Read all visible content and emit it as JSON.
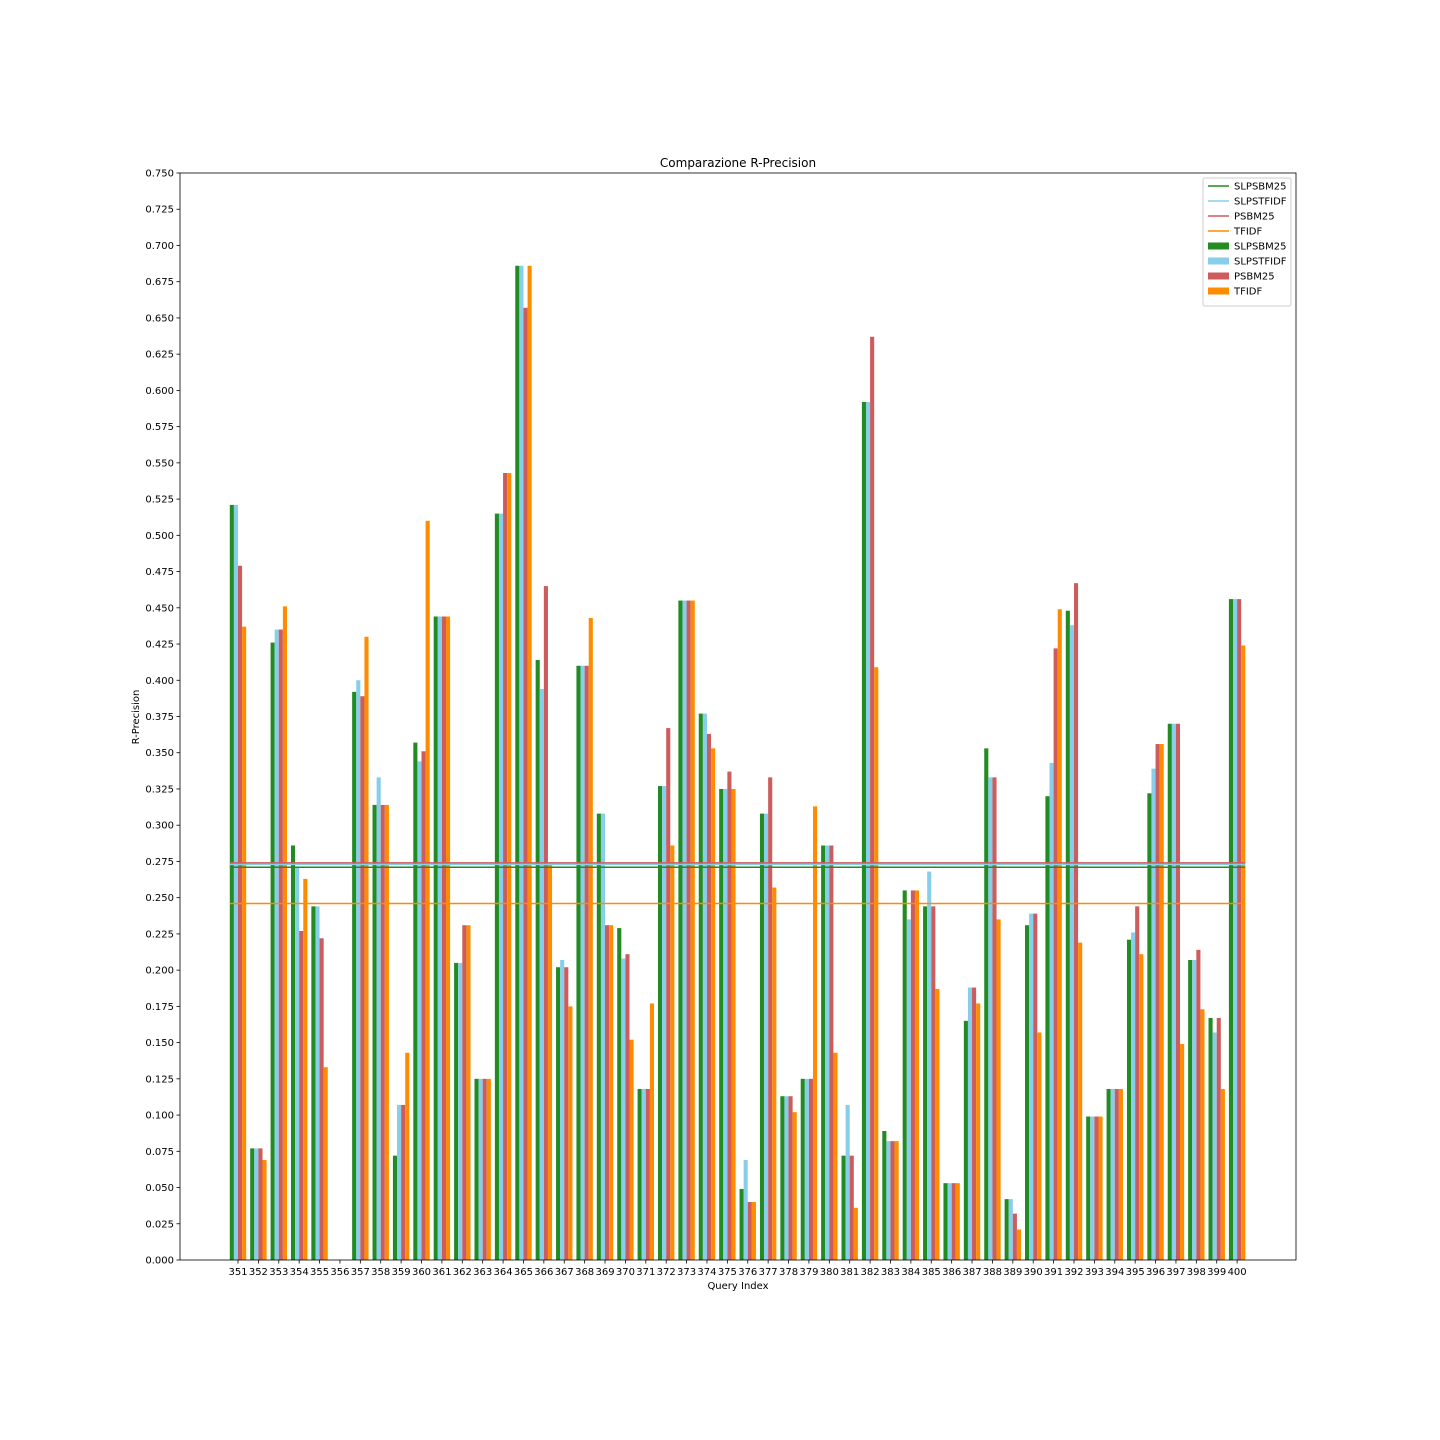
{
  "chart_data": {
    "type": "bar",
    "title": "Comparazione R-Precision",
    "xlabel": "Query Index",
    "ylabel": "R-Precision",
    "ylim": [
      0,
      0.75
    ],
    "yticks": [
      "0.000",
      "0.025",
      "0.050",
      "0.075",
      "0.100",
      "0.125",
      "0.150",
      "0.175",
      "0.200",
      "0.225",
      "0.250",
      "0.275",
      "0.300",
      "0.325",
      "0.350",
      "0.375",
      "0.400",
      "0.425",
      "0.450",
      "0.475",
      "0.500",
      "0.525",
      "0.550",
      "0.575",
      "0.600",
      "0.625",
      "0.650",
      "0.675",
      "0.700",
      "0.725",
      "0.750"
    ],
    "grid": false,
    "legend_position": "top-right",
    "categories": [
      "351",
      "352",
      "353",
      "354",
      "355",
      "356",
      "357",
      "358",
      "359",
      "360",
      "361",
      "362",
      "363",
      "364",
      "365",
      "366",
      "367",
      "368",
      "369",
      "370",
      "371",
      "372",
      "373",
      "374",
      "375",
      "376",
      "377",
      "378",
      "379",
      "380",
      "381",
      "382",
      "383",
      "384",
      "385",
      "386",
      "387",
      "388",
      "389",
      "390",
      "391",
      "392",
      "393",
      "394",
      "395",
      "396",
      "397",
      "398",
      "399",
      "400"
    ],
    "series": [
      {
        "name": "SLPSBM25",
        "color": "#228b22",
        "values": [
          0.521,
          0.077,
          0.426,
          0.286,
          0.244,
          0.0,
          0.392,
          0.314,
          0.072,
          0.357,
          0.444,
          0.205,
          0.125,
          0.515,
          0.686,
          0.414,
          0.202,
          0.41,
          0.308,
          0.229,
          0.118,
          0.327,
          0.455,
          0.377,
          0.325,
          0.049,
          0.308,
          0.113,
          0.125,
          0.286,
          0.072,
          0.592,
          0.089,
          0.255,
          0.244,
          0.053,
          0.165,
          0.353,
          0.042,
          0.231,
          0.32,
          0.448,
          0.099,
          0.118,
          0.221,
          0.322,
          0.37,
          0.207,
          0.167,
          0.456
        ]
      },
      {
        "name": "SLPSTFIDF",
        "color": "#87ceeb",
        "values": [
          0.521,
          0.077,
          0.435,
          0.271,
          0.244,
          0.0,
          0.4,
          0.333,
          0.107,
          0.344,
          0.444,
          0.205,
          0.125,
          0.515,
          0.686,
          0.394,
          0.207,
          0.41,
          0.308,
          0.208,
          0.118,
          0.327,
          0.455,
          0.377,
          0.325,
          0.069,
          0.308,
          0.113,
          0.125,
          0.286,
          0.107,
          0.592,
          0.082,
          0.235,
          0.268,
          0.053,
          0.188,
          0.333,
          0.042,
          0.239,
          0.343,
          0.438,
          0.099,
          0.118,
          0.226,
          0.339,
          0.37,
          0.207,
          0.157,
          0.456
        ]
      },
      {
        "name": "PSBM25",
        "color": "#cd5c5c",
        "values": [
          0.479,
          0.077,
          0.435,
          0.227,
          0.222,
          0.0,
          0.389,
          0.314,
          0.107,
          0.351,
          0.444,
          0.231,
          0.125,
          0.543,
          0.657,
          0.465,
          0.202,
          0.41,
          0.231,
          0.211,
          0.118,
          0.367,
          0.455,
          0.363,
          0.337,
          0.04,
          0.333,
          0.113,
          0.125,
          0.286,
          0.072,
          0.637,
          0.082,
          0.255,
          0.244,
          0.053,
          0.188,
          0.333,
          0.032,
          0.239,
          0.422,
          0.467,
          0.099,
          0.118,
          0.244,
          0.356,
          0.37,
          0.214,
          0.167,
          0.456
        ]
      },
      {
        "name": "TFIDF",
        "color": "#ff8c00",
        "values": [
          0.437,
          0.069,
          0.451,
          0.263,
          0.133,
          0.0,
          0.43,
          0.314,
          0.143,
          0.51,
          0.444,
          0.231,
          0.125,
          0.543,
          0.686,
          0.273,
          0.175,
          0.443,
          0.231,
          0.152,
          0.177,
          0.286,
          0.455,
          0.353,
          0.325,
          0.04,
          0.257,
          0.102,
          0.313,
          0.143,
          0.036,
          0.409,
          0.082,
          0.255,
          0.187,
          0.053,
          0.177,
          0.235,
          0.021,
          0.157,
          0.449,
          0.219,
          0.099,
          0.118,
          0.211,
          0.356,
          0.149,
          0.173,
          0.118,
          0.424
        ]
      }
    ],
    "mean_lines": [
      {
        "name": "SLPSBM25",
        "color": "#228b22",
        "value": 0.271
      },
      {
        "name": "SLPSTFIDF",
        "color": "#87ceeb",
        "value": 0.273
      },
      {
        "name": "PSBM25",
        "color": "#cd5c5c",
        "value": 0.274
      },
      {
        "name": "TFIDF",
        "color": "#ff8c00",
        "value": 0.246
      }
    ]
  }
}
